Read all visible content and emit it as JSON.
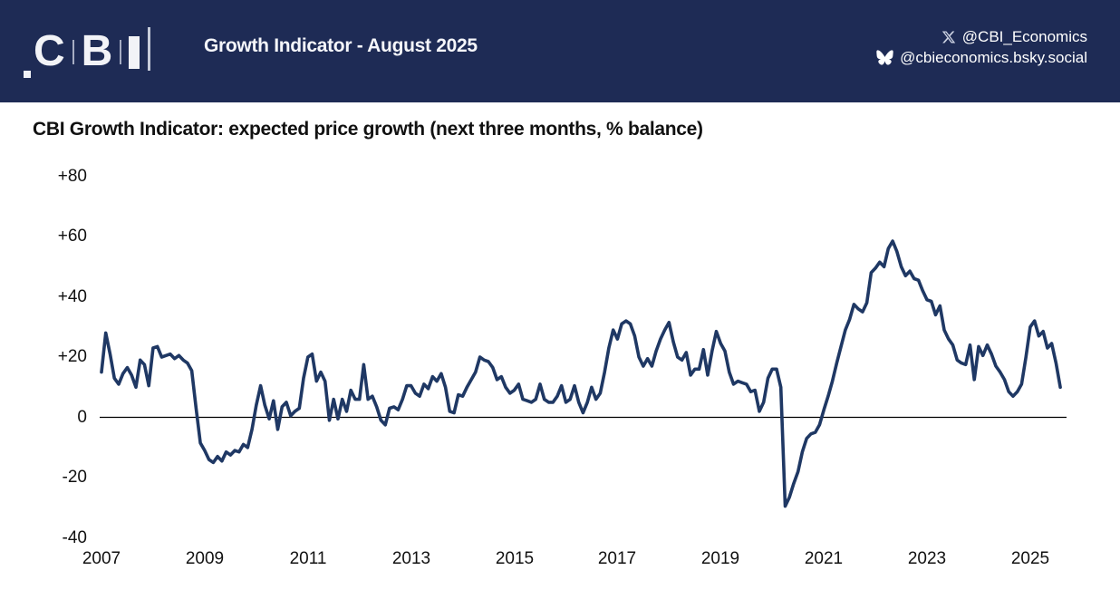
{
  "header": {
    "background_color": "#1e2b55",
    "logo": {
      "dot": ".",
      "letter_c": "C",
      "letter_b": "B",
      "letter_i": "I"
    },
    "title": "Growth Indicator - August 2025",
    "social": [
      {
        "icon": "x-logo-icon",
        "handle": "@CBI_Economics"
      },
      {
        "icon": "bluesky-butterfly-icon",
        "handle": "@cbieconomics.bsky.social"
      }
    ]
  },
  "chart_data": {
    "type": "line",
    "title": "CBI Growth Indicator: expected price growth (next three months, % balance)",
    "xlabel": "",
    "ylabel": "% balance",
    "ylim": [
      -40,
      80
    ],
    "grid": false,
    "legend": false,
    "zero_line": true,
    "line_color": "#1f3864",
    "x_start": "2007-01",
    "x_end": "2025-08",
    "frequency": "monthly",
    "x_ticks": [
      2007,
      2009,
      2011,
      2013,
      2015,
      2017,
      2019,
      2021,
      2023,
      2025
    ],
    "x_tick_labels": [
      "2007",
      "2009",
      "2011",
      "2013",
      "2015",
      "2017",
      "2019",
      "2021",
      "2023",
      "2025"
    ],
    "y_ticks": [
      80,
      60,
      40,
      20,
      0,
      -20,
      -40
    ],
    "y_tick_labels": [
      "+80",
      "+60",
      "+40",
      "+20",
      "0",
      "-20",
      "-40"
    ],
    "series": [
      {
        "name": "Expected price growth, next three months (% balance)",
        "values": [
          15,
          28,
          21,
          13,
          11,
          14.5,
          16.5,
          14,
          10,
          19,
          17.5,
          10.5,
          23,
          23.5,
          20,
          20.5,
          21,
          19.5,
          20.5,
          19,
          18,
          15.5,
          3,
          -8.5,
          -11,
          -14,
          -15,
          -13,
          -14.5,
          -11.5,
          -12.5,
          -11,
          -11.5,
          -9,
          -10,
          -4,
          4,
          10.5,
          4,
          -0.5,
          5.5,
          -4,
          3.5,
          5,
          0.5,
          2,
          3,
          13,
          20,
          21,
          12,
          15,
          12,
          -1,
          6,
          -0.5,
          6,
          2,
          9,
          6,
          6,
          17.5,
          6,
          7,
          3.5,
          -1,
          -2.5,
          3,
          3.5,
          2.5,
          6,
          10.5,
          10.5,
          8,
          7,
          11,
          9.5,
          13.5,
          12,
          14.5,
          10,
          2,
          1.5,
          7.5,
          7,
          10,
          12.5,
          15,
          20,
          19,
          18.5,
          16.5,
          12.5,
          13.5,
          10,
          8,
          9,
          11,
          6,
          5.5,
          5,
          6,
          11,
          6,
          5,
          5,
          7,
          10.5,
          5,
          6,
          10.5,
          5,
          1.5,
          5,
          10,
          6,
          8,
          15,
          23,
          29,
          26,
          31,
          32,
          31,
          27,
          20,
          17,
          19.5,
          17,
          22,
          26,
          29,
          31.5,
          25,
          20,
          19,
          21.5,
          14,
          16,
          16,
          22.5,
          14,
          22,
          28.5,
          24.5,
          22,
          15,
          11,
          12,
          11.5,
          11,
          8.5,
          9,
          2,
          5,
          13,
          16,
          16,
          10,
          -29.5,
          -26.5,
          -22,
          -18,
          -11.5,
          -7,
          -5.5,
          -5,
          -2.5,
          2.5,
          7,
          12,
          18,
          23.5,
          29,
          32.5,
          37.5,
          36,
          35,
          38,
          48,
          49.5,
          51.5,
          50,
          56,
          58.5,
          55,
          50,
          47,
          48.5,
          46,
          45.5,
          42,
          39,
          38.5,
          34,
          37,
          29,
          26,
          24,
          19,
          18,
          17.5,
          24,
          12.5,
          23.5,
          20.5,
          24,
          21,
          17,
          15,
          12.5,
          8.5,
          7,
          8.5,
          11,
          20,
          30,
          32,
          27,
          28.5,
          23,
          24.5,
          18,
          10
        ]
      }
    ]
  }
}
